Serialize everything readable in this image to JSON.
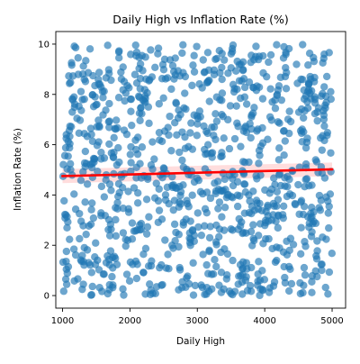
{
  "chart_data": {
    "type": "scatter",
    "title": "Daily High vs Inflation Rate (%)",
    "xlabel": "Daily High",
    "ylabel": "Inflation Rate (%)",
    "xlim": [
      900,
      5200
    ],
    "ylim": [
      -0.5,
      10.5
    ],
    "xticks": [
      1000,
      2000,
      3000,
      4000,
      5000
    ],
    "yticks": [
      0,
      2,
      4,
      6,
      8,
      10
    ],
    "grid": false,
    "legend": "none",
    "series": [
      {
        "marker_color": "#1f77b4",
        "marker_alpha": 0.65,
        "x_range": [
          1000,
          5000
        ],
        "y_range": [
          0,
          10
        ],
        "point_count": 1000,
        "distribution": "uniform"
      }
    ],
    "regression_line": {
      "color": "#ff0000",
      "x": [
        1000,
        5000
      ],
      "y": [
        4.75,
        5.02
      ],
      "ci_band": {
        "color": "#ffb3b3",
        "lower_at_ends": [
          4.47,
          4.75
        ],
        "upper_at_ends": [
          5.03,
          5.29
        ]
      }
    }
  }
}
